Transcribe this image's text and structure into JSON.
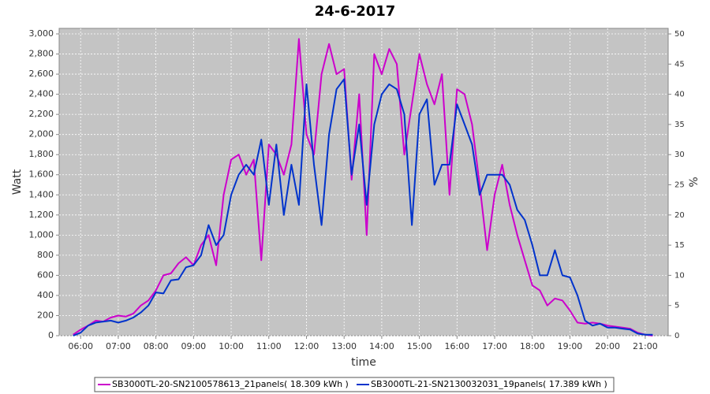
{
  "chart_data": {
    "type": "line",
    "title": "24-6-2017",
    "x_label": "time",
    "y_label": "Watt",
    "y2_label": "%",
    "x": [
      5.8,
      6.0,
      6.2,
      6.4,
      6.6,
      6.8,
      7.0,
      7.2,
      7.4,
      7.6,
      7.8,
      8.0,
      8.2,
      8.4,
      8.6,
      8.8,
      9.0,
      9.2,
      9.4,
      9.6,
      9.8,
      10.0,
      10.2,
      10.4,
      10.6,
      10.8,
      11.0,
      11.2,
      11.4,
      11.6,
      11.8,
      12.0,
      12.2,
      12.4,
      12.6,
      12.8,
      13.0,
      13.2,
      13.4,
      13.6,
      13.8,
      14.0,
      14.2,
      14.4,
      14.6,
      14.8,
      15.0,
      15.2,
      15.4,
      15.6,
      15.8,
      16.0,
      16.2,
      16.4,
      16.6,
      16.8,
      17.0,
      17.2,
      17.4,
      17.6,
      17.8,
      18.0,
      18.2,
      18.4,
      18.6,
      18.8,
      19.0,
      19.2,
      19.4,
      19.6,
      19.8,
      20.0,
      20.2,
      20.4,
      20.6,
      20.8,
      21.0,
      21.2
    ],
    "series": [
      {
        "name": "SB3000TL-20-SN2100578613_21panels( 18.309 kWh )",
        "color": "#cc00cc",
        "values": [
          10,
          60,
          100,
          150,
          140,
          180,
          200,
          190,
          220,
          300,
          350,
          450,
          600,
          620,
          720,
          780,
          700,
          900,
          1000,
          700,
          1400,
          1750,
          1800,
          1600,
          1750,
          750,
          1900,
          1800,
          1600,
          1900,
          2950,
          2000,
          1800,
          2600,
          2900,
          2600,
          2650,
          1550,
          2400,
          1000,
          2800,
          2600,
          2850,
          2700,
          1800,
          2300,
          2800,
          2500,
          2300,
          2600,
          1400,
          2450,
          2400,
          2100,
          1500,
          850,
          1400,
          1700,
          1300,
          1000,
          750,
          500,
          450,
          300,
          370,
          350,
          250,
          130,
          120,
          130,
          120,
          100,
          90,
          80,
          70,
          30,
          10,
          0
        ]
      },
      {
        "name": "SB3000TL-21-SN2130032031_19panels( 17.389 kWh )",
        "color": "#0033cc",
        "values": [
          0,
          30,
          100,
          130,
          140,
          150,
          130,
          150,
          180,
          230,
          300,
          430,
          420,
          550,
          560,
          680,
          700,
          800,
          1100,
          900,
          1000,
          1400,
          1600,
          1700,
          1600,
          1950,
          1300,
          1900,
          1200,
          1700,
          1300,
          2500,
          1700,
          1100,
          2000,
          2450,
          2550,
          1600,
          2100,
          1300,
          2100,
          2400,
          2500,
          2450,
          2200,
          1100,
          2200,
          2350,
          1500,
          1700,
          1700,
          2300,
          2100,
          1900,
          1400,
          1600,
          1600,
          1600,
          1500,
          1250,
          1150,
          900,
          600,
          600,
          850,
          600,
          580,
          400,
          150,
          100,
          120,
          80,
          80,
          70,
          60,
          20,
          10,
          10
        ]
      }
    ],
    "xlim": [
      5.43,
      21.61
    ],
    "xticks": [
      {
        "value": 6,
        "label": "06:00"
      },
      {
        "value": 7,
        "label": "07:00"
      },
      {
        "value": 8,
        "label": "08:00"
      },
      {
        "value": 9,
        "label": "09:00"
      },
      {
        "value": 10,
        "label": "10:00"
      },
      {
        "value": 11,
        "label": "11:00"
      },
      {
        "value": 12,
        "label": "12:00"
      },
      {
        "value": 13,
        "label": "13:00"
      },
      {
        "value": 14,
        "label": "14:00"
      },
      {
        "value": 15,
        "label": "15:00"
      },
      {
        "value": 16,
        "label": "16:00"
      },
      {
        "value": 17,
        "label": "17:00"
      },
      {
        "value": 18,
        "label": "18:00"
      },
      {
        "value": 19,
        "label": "19:00"
      },
      {
        "value": 20,
        "label": "20:00"
      },
      {
        "value": 21,
        "label": "21:00"
      }
    ],
    "ylim": [
      0,
      3055
    ],
    "yticks": [
      0,
      200,
      400,
      600,
      800,
      {
        "value": 1000,
        "label": "1,000"
      },
      {
        "value": 1200,
        "label": "1,200"
      },
      {
        "value": 1400,
        "label": "1,400"
      },
      {
        "value": 1600,
        "label": "1,600"
      },
      {
        "value": 1800,
        "label": "1,800"
      },
      {
        "value": 2000,
        "label": "2,000"
      },
      {
        "value": 2200,
        "label": "2,200"
      },
      {
        "value": 2400,
        "label": "2,400"
      },
      {
        "value": 2600,
        "label": "2,600"
      },
      {
        "value": 2800,
        "label": "2,800"
      },
      {
        "value": 3000,
        "label": "3,000"
      }
    ],
    "y2lim": [
      0,
      50.92
    ],
    "y2ticks": [
      0,
      5,
      10,
      15,
      20,
      25,
      30,
      35,
      40,
      45,
      50
    ],
    "grid": true
  }
}
